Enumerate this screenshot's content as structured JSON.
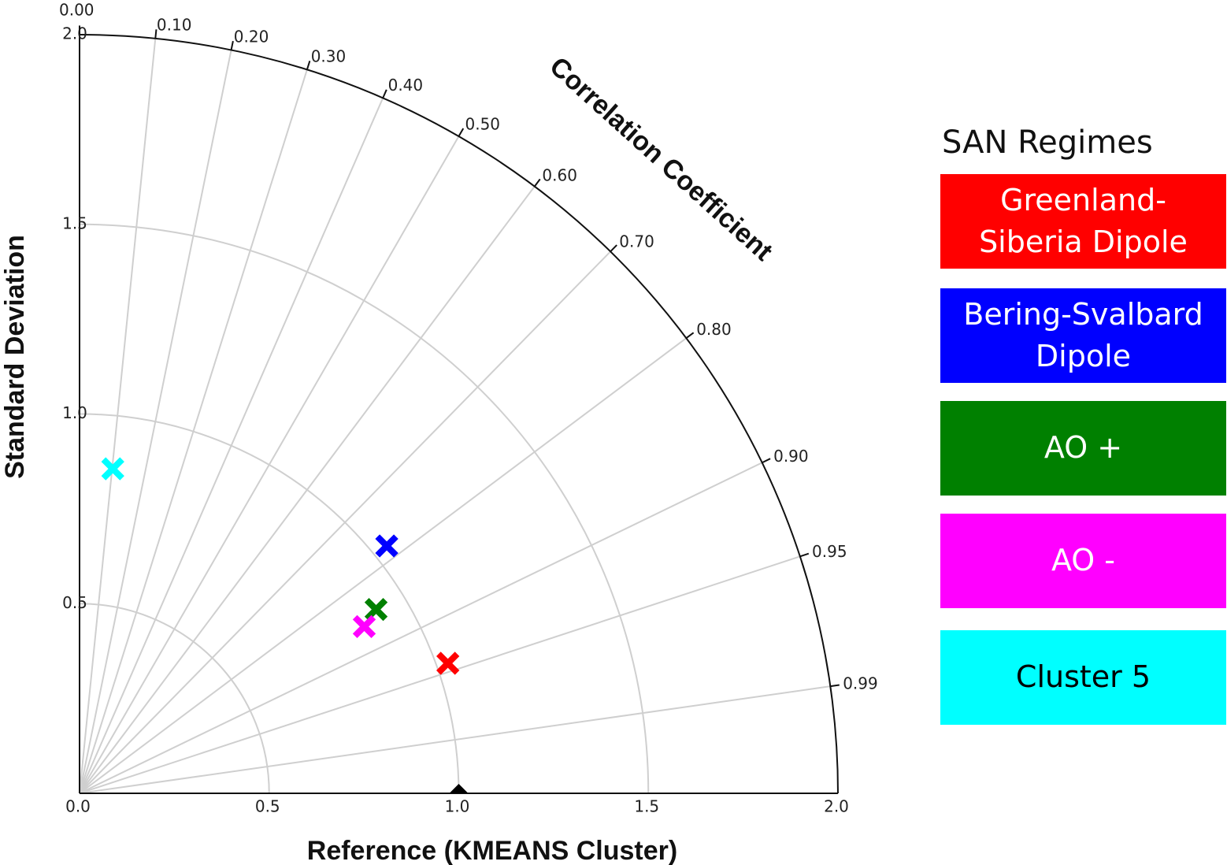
{
  "chart_data": {
    "type": "scatter",
    "subtype": "taylor-diagram",
    "xlabel": "Reference (KMEANS Cluster)",
    "ylabel": "Standard Deviation",
    "angular_label": "Correlation Coefficient",
    "std_range": [
      0,
      2.0
    ],
    "std_ticks": [
      0.0,
      0.5,
      1.0,
      1.5,
      2.0
    ],
    "std_tick_labels": [
      "0.0",
      "0.5",
      "1.0",
      "1.5",
      "2.0"
    ],
    "corr_ticks": [
      0.0,
      0.1,
      0.2,
      0.3,
      0.4,
      0.5,
      0.6,
      0.7,
      0.8,
      0.9,
      0.95,
      0.99
    ],
    "corr_tick_labels": [
      "0.00",
      "0.10",
      "0.20",
      "0.30",
      "0.40",
      "0.50",
      "0.60",
      "0.70",
      "0.80",
      "0.90",
      "0.95",
      "0.99"
    ],
    "std_arcs": [
      0.5,
      1.0,
      1.5
    ],
    "grid": true,
    "reference": {
      "std": 1.0,
      "corr": 1.0,
      "color": "#000000"
    },
    "points": [
      {
        "std": 1.03,
        "corr": 0.943,
        "color": "#ff0000"
      },
      {
        "std": 1.04,
        "corr": 0.779,
        "color": "#0000ff"
      },
      {
        "std": 0.92,
        "corr": 0.85,
        "color": "#008000"
      },
      {
        "std": 0.87,
        "corr": 0.863,
        "color": "#ff00ff"
      },
      {
        "std": 0.86,
        "corr": 0.102,
        "color": "#00ffff"
      }
    ],
    "legend": {
      "title": "SAN Regimes",
      "placement": "right",
      "entries": [
        {
          "label": "Greenland-\nSiberia Dipole",
          "color": "#ff0000",
          "text_color": "#ffffff"
        },
        {
          "label": "Bering-Svalbard\nDipole",
          "color": "#0000ff",
          "text_color": "#ffffff"
        },
        {
          "label": "AO +",
          "color": "#008000",
          "text_color": "#ffffff"
        },
        {
          "label": "AO -",
          "color": "#ff00ff",
          "text_color": "#ffffff"
        },
        {
          "label": "Cluster 5",
          "color": "#00ffff",
          "text_color": "#000000"
        }
      ]
    }
  }
}
